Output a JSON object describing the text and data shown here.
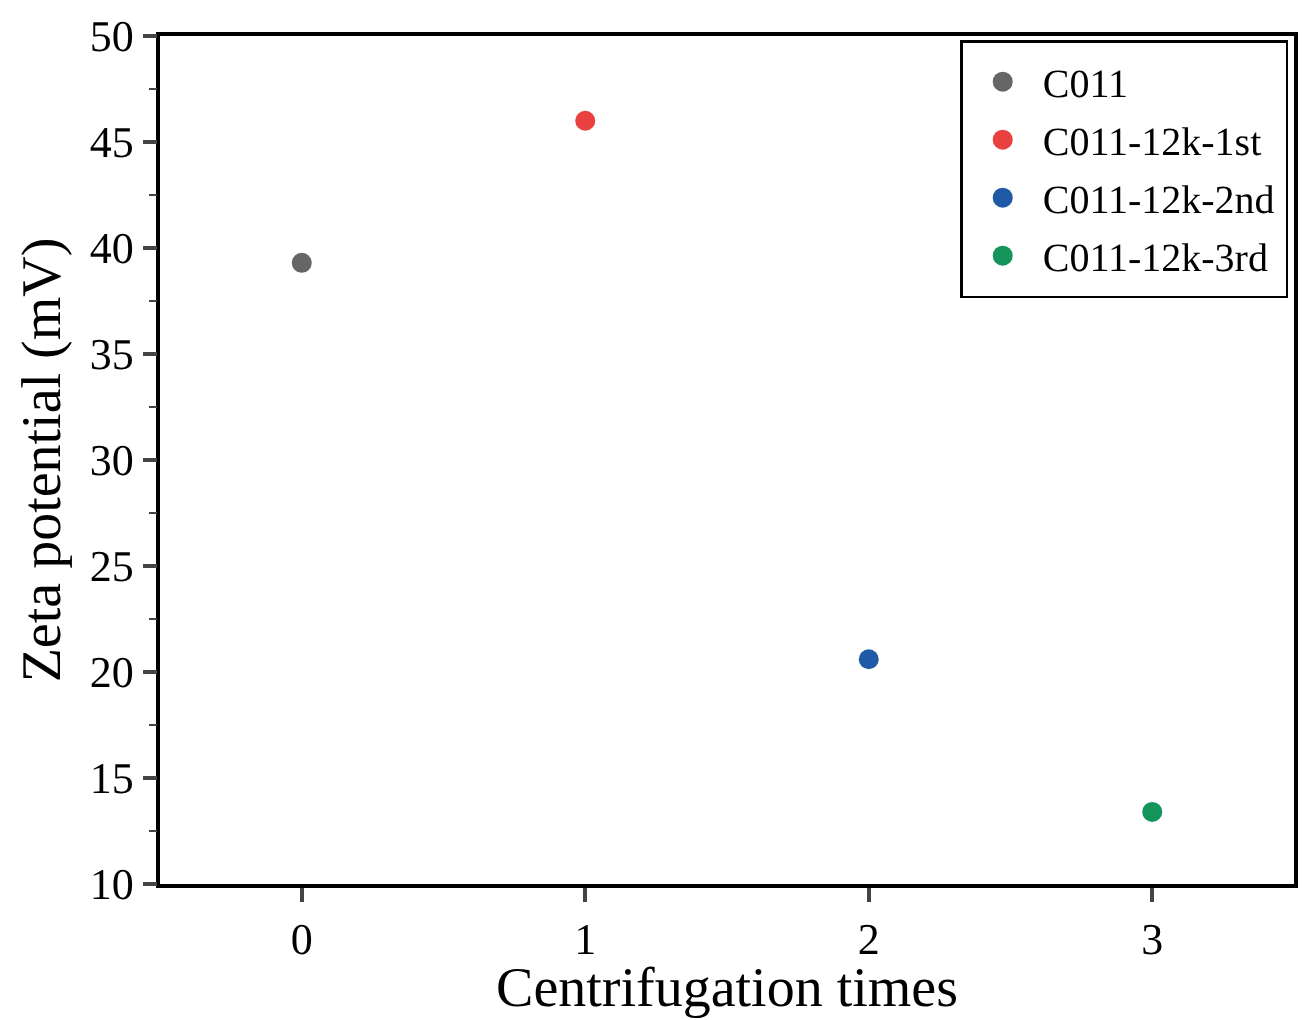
{
  "chart_data": {
    "type": "scatter",
    "xlabel": "Centrifugation times",
    "ylabel": "Zeta potential (mV)",
    "xlim": [
      -0.5,
      3.5
    ],
    "xticks": [
      0,
      1,
      2,
      3
    ],
    "ylim": [
      10,
      50
    ],
    "yticks": [
      10,
      15,
      20,
      25,
      30,
      35,
      40,
      45,
      50
    ],
    "legend": "top right",
    "marker": "circle",
    "series": [
      {
        "name": "C011",
        "color": "#666666",
        "x": [
          0
        ],
        "values": [
          39.3
        ]
      },
      {
        "name": "C011-12k-1st",
        "color": "#e8413f",
        "x": [
          1
        ],
        "values": [
          46.0
        ]
      },
      {
        "name": "C011-12k-2nd",
        "color": "#1f5aa6",
        "x": [
          2
        ],
        "values": [
          20.6
        ]
      },
      {
        "name": "C011-12k-3rd",
        "color": "#14945a",
        "x": [
          3
        ],
        "values": [
          13.4
        ]
      }
    ]
  }
}
